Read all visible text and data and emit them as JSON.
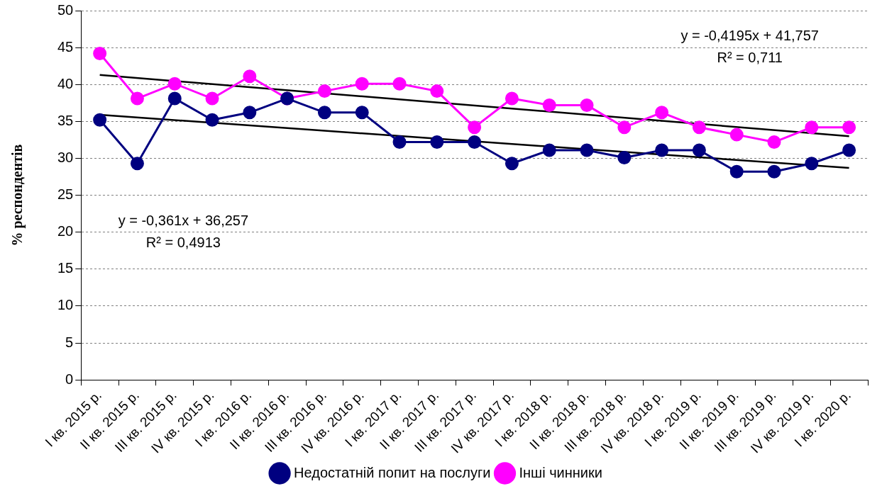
{
  "chart_data": {
    "type": "line",
    "ylabel": "% респондентів",
    "categories": [
      "I кв. 2015 р.",
      "II кв. 2015 р.",
      "III кв. 2015 р.",
      "IV кв. 2015 р.",
      "I кв. 2016 р.",
      "II кв. 2016 р.",
      "III кв. 2016 р.",
      "IV кв. 2016 р.",
      "I кв. 2017 р.",
      "II кв. 2017 р.",
      "III кв. 2017 р.",
      "IV кв. 2017 р.",
      "I кв. 2018 р.",
      "II кв. 2018 р.",
      "III кв. 2018 р.",
      "IV кв. 2018 р.",
      "I кв. 2019 р.",
      "II кв. 2019 р.",
      "III кв. 2019 р.",
      "IV кв. 2019 р.",
      "I кв. 2020 р."
    ],
    "series": [
      {
        "name": "Недостатній попит на послуги",
        "color": "#000080",
        "values": [
          35.2,
          29.3,
          38.1,
          35.2,
          36.2,
          38.1,
          36.2,
          36.2,
          32.2,
          32.2,
          32.2,
          29.3,
          31.1,
          31.1,
          30.1,
          31.1,
          31.1,
          28.2,
          28.2,
          29.3,
          31.1
        ]
      },
      {
        "name": "Інші чинники",
        "color": "#ff00ff",
        "values": [
          44.2,
          38.1,
          40.1,
          38.1,
          41.1,
          38.1,
          39.1,
          40.1,
          40.1,
          39.1,
          34.2,
          38.1,
          37.2,
          37.2,
          34.2,
          36.2,
          34.2,
          33.2,
          32.2,
          34.2,
          34.2
        ]
      },
      {
        "type": "line",
        "color": "#000000",
        "marker": "none",
        "x": [
          "I кв. 2015 р.",
          "I кв. 2020 р."
        ],
        "values": [
          35.9,
          28.7
        ]
      },
      {
        "type": "line",
        "color": "#000000",
        "marker": "none",
        "x": [
          "I кв. 2015 р.",
          "I кв. 2020 р."
        ],
        "values": [
          41.3,
          33.0
        ]
      }
    ],
    "ylim": [
      0,
      50
    ],
    "yticks": [
      0,
      5,
      10,
      15,
      20,
      25,
      30,
      35,
      40,
      45,
      50
    ],
    "grid": "y",
    "legend": "bottom",
    "marker": "circle",
    "line_style": "solid",
    "annotations": [
      "y = -0,4195x + 41,757",
      "R² = 0,711",
      "y = -0,361x + 36,257",
      "R² = 0,4913"
    ]
  }
}
